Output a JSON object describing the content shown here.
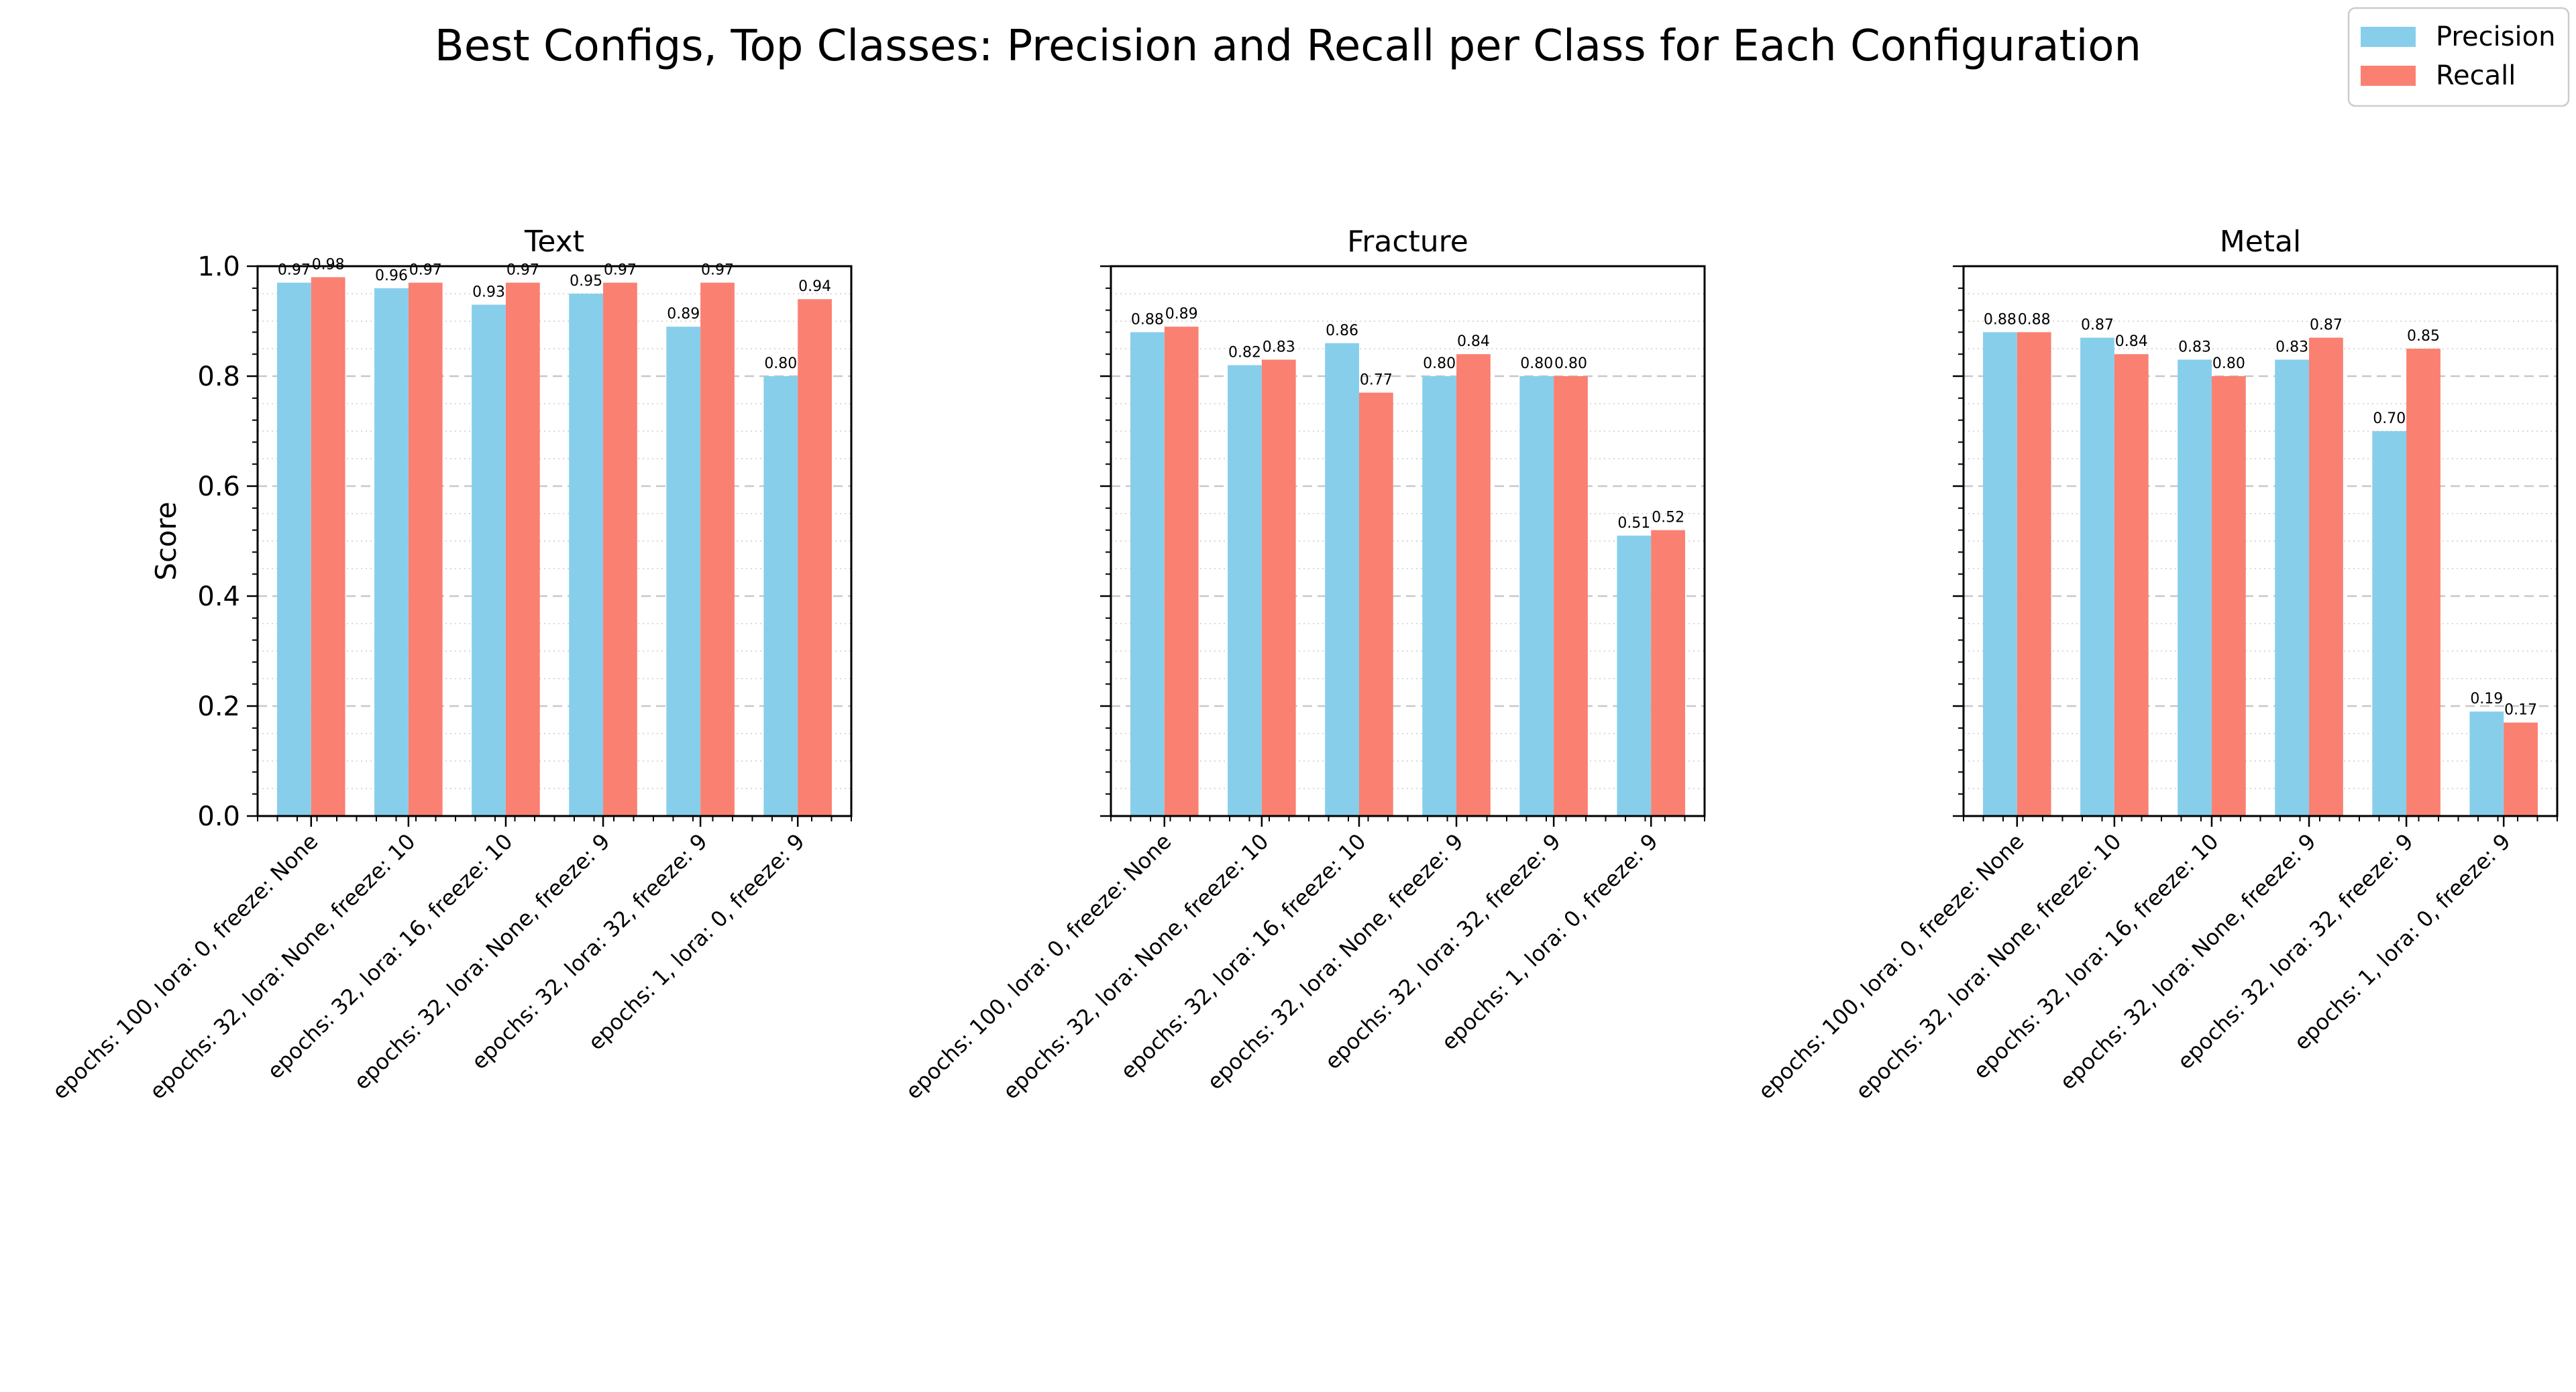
{
  "title": "Best Configs, Top Classes: Precision and Recall per Class for Each Configuration",
  "legend": {
    "placement": "top-right",
    "entries": [
      {
        "label": "Precision",
        "color": "#87ceeb"
      },
      {
        "label": "Recall",
        "color": "#fa8072"
      }
    ]
  },
  "chart_data": {
    "type": "bar",
    "ylabel": "Score",
    "ylim": [
      0,
      1.0
    ],
    "yticks": [
      "0.0",
      "0.2",
      "0.4",
      "0.6",
      "0.8",
      "1.0"
    ],
    "grid": "dashed horizontal",
    "categories": [
      "epochs: 100, lora: 0, freeze: None",
      "epochs: 32, lora: None, freeze: 10",
      "epochs: 32, lora: 16, freeze: 10",
      "epochs: 32, lora: None, freeze: 9",
      "epochs: 32, lora: 32, freeze: 9",
      "epochs: 1, lora: 0, freeze: 9"
    ],
    "panels": [
      {
        "title": "Text",
        "series": [
          {
            "name": "Precision",
            "color": "#87ceeb",
            "values": [
              0.97,
              0.96,
              0.93,
              0.95,
              0.89,
              0.8
            ]
          },
          {
            "name": "Recall",
            "color": "#fa8072",
            "values": [
              0.98,
              0.97,
              0.97,
              0.97,
              0.97,
              0.94
            ]
          }
        ]
      },
      {
        "title": "Fracture",
        "series": [
          {
            "name": "Precision",
            "color": "#87ceeb",
            "values": [
              0.88,
              0.82,
              0.86,
              0.8,
              0.8,
              0.51
            ]
          },
          {
            "name": "Recall",
            "color": "#fa8072",
            "values": [
              0.89,
              0.83,
              0.77,
              0.84,
              0.8,
              0.52
            ]
          }
        ]
      },
      {
        "title": "Metal",
        "series": [
          {
            "name": "Precision",
            "color": "#87ceeb",
            "values": [
              0.88,
              0.87,
              0.83,
              0.83,
              0.7,
              0.19
            ]
          },
          {
            "name": "Recall",
            "color": "#fa8072",
            "values": [
              0.88,
              0.84,
              0.8,
              0.87,
              0.85,
              0.17
            ]
          }
        ]
      }
    ]
  }
}
